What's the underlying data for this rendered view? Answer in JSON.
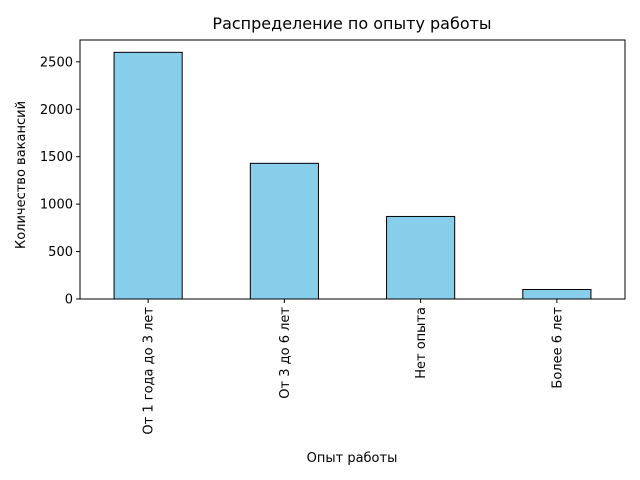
{
  "chart_data": {
    "type": "bar",
    "title": "Распределение по опыту работы",
    "xlabel": "Опыт работы",
    "ylabel": "Количество вакансий",
    "categories": [
      "От 1 года до 3 лет",
      "От 3 до 6 лет",
      "Нет опыта",
      "Более 6 лет"
    ],
    "values": [
      2600,
      1430,
      870,
      100
    ],
    "ylim": [
      0,
      2730
    ],
    "yticks": [
      0,
      500,
      1000,
      1500,
      2000,
      2500
    ],
    "ytick_labels": [
      "0",
      "500",
      "1000",
      "1500",
      "2000",
      "2500"
    ],
    "grid": false,
    "bar_color": "#87ceeb",
    "edge_color": "#000000"
  }
}
